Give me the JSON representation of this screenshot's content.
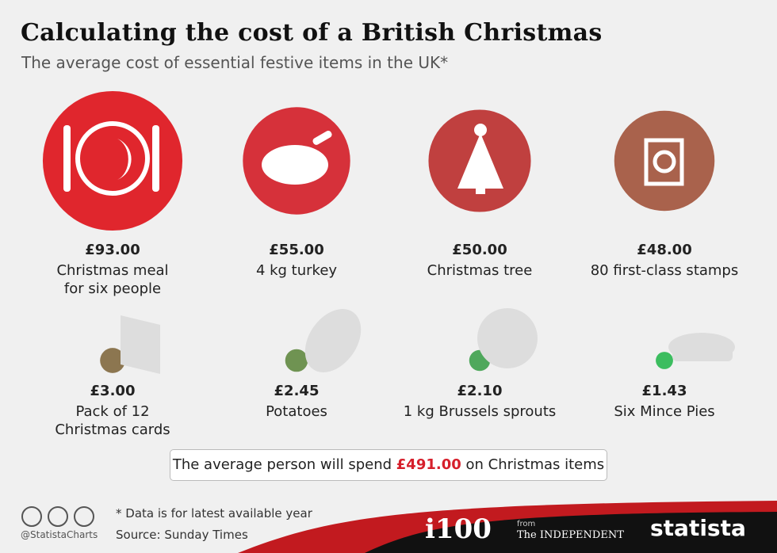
{
  "chart_data": {
    "type": "proportional-circles",
    "title": "Calculating the cost of a British Christmas",
    "subtitle": "The average cost of essential festive items in the UK*",
    "categories": [
      "Christmas meal for six people",
      "4 kg turkey",
      "Christmas tree",
      "80 first-class stamps",
      "Pack of 12 Christmas cards",
      "Potatoes",
      "1 kg Brussels sprouts",
      "Six Mince Pies"
    ],
    "values": [
      93,
      55,
      50,
      48,
      3,
      2.45,
      2.1,
      1.43
    ],
    "value_labels": [
      "£93.00",
      "£55.00",
      "£50.00",
      "£48.00",
      "£3.00",
      "£2.45",
      "£2.10",
      "£1.43"
    ],
    "colors": [
      "#e0262d",
      "#d6313a",
      "#c0403f",
      "#a9624c",
      "#8c7650",
      "#6f9352",
      "#4fa85c",
      "#3cbd5f"
    ],
    "summary_prefix": "The average person will spend",
    "total_value": 491,
    "total_value_label": "£491.00",
    "summary_suffix": "on Christmas items",
    "footer": {
      "handle": "@StatistaCharts",
      "note": "* Data is for latest available year",
      "source": "Source: Sunday Times",
      "brand1": "i100",
      "from": "from",
      "brand2a": "The",
      "brand2b": "INDEPENDENT",
      "brand3": "statista"
    }
  }
}
